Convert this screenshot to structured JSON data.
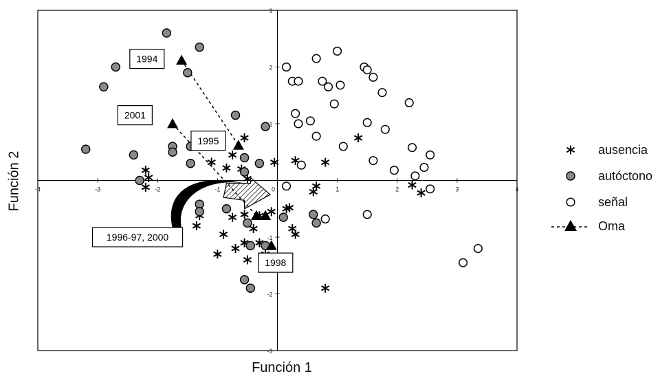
{
  "chart_data": {
    "type": "scatter",
    "xlabel": "Función 1",
    "ylabel": "Función 2",
    "xlim": [
      -4,
      4
    ],
    "ylim": [
      -3,
      3
    ],
    "x_ticks": [
      "-4",
      "-3",
      "-2",
      "-1",
      "0",
      "1",
      "2",
      "3",
      "4"
    ],
    "y_ticks": [
      "3",
      "2",
      "1",
      "-1",
      "-2",
      "-3"
    ],
    "grid": false,
    "legend_position": "right",
    "legend": [
      {
        "key": "ausencia",
        "label": "ausencia"
      },
      {
        "key": "autoctono",
        "label": "autóctono"
      },
      {
        "key": "senal",
        "label": "señal"
      },
      {
        "key": "oma",
        "label": "Oma"
      }
    ],
    "series": [
      {
        "name": "ausencia",
        "marker": "asterisk",
        "points": [
          [
            -2.2,
            0.18
          ],
          [
            -2.15,
            0.05
          ],
          [
            -2.2,
            -0.12
          ],
          [
            -1.1,
            0.32
          ],
          [
            -0.85,
            0.22
          ],
          [
            -0.6,
            0.2
          ],
          [
            -0.55,
            0.75
          ],
          [
            -0.75,
            0.45
          ],
          [
            -0.05,
            0.32
          ],
          [
            0.3,
            0.35
          ],
          [
            0.8,
            0.32
          ],
          [
            1.35,
            0.75
          ],
          [
            2.25,
            -0.08
          ],
          [
            2.4,
            -0.22
          ],
          [
            -0.5,
            0.03
          ],
          [
            -1.3,
            -0.62
          ],
          [
            -0.75,
            -0.65
          ],
          [
            -0.55,
            -0.6
          ],
          [
            -0.3,
            -0.62
          ],
          [
            -0.4,
            -0.85
          ],
          [
            -0.1,
            -0.55
          ],
          [
            0.2,
            -0.48
          ],
          [
            0.25,
            -0.85
          ],
          [
            0.3,
            -0.95
          ],
          [
            -0.9,
            -0.95
          ],
          [
            -0.55,
            -1.1
          ],
          [
            -0.3,
            -1.1
          ],
          [
            -0.7,
            -1.2
          ],
          [
            -0.5,
            -1.4
          ],
          [
            -1.0,
            -1.3
          ],
          [
            -0.2,
            -1.4
          ],
          [
            -0.2,
            -1.3
          ],
          [
            0.65,
            -0.1
          ],
          [
            0.6,
            -0.2
          ],
          [
            0.8,
            -1.9
          ],
          [
            -1.35,
            -0.8
          ],
          [
            0.15,
            -0.5
          ]
        ]
      },
      {
        "name": "autóctono",
        "marker": "filled-circle",
        "points": [
          [
            -3.2,
            0.55
          ],
          [
            -2.9,
            1.65
          ],
          [
            -2.7,
            2.0
          ],
          [
            -1.85,
            2.6
          ],
          [
            -1.3,
            2.35
          ],
          [
            -1.5,
            1.9
          ],
          [
            -2.4,
            0.45
          ],
          [
            -2.3,
            0.0
          ],
          [
            -1.75,
            0.6
          ],
          [
            -1.75,
            0.5
          ],
          [
            -1.45,
            0.6
          ],
          [
            -1.45,
            0.3
          ],
          [
            -0.7,
            1.15
          ],
          [
            -0.2,
            0.95
          ],
          [
            -0.55,
            0.4
          ],
          [
            -0.55,
            0.15
          ],
          [
            -0.3,
            0.3
          ],
          [
            -1.3,
            -0.42
          ],
          [
            -1.3,
            -0.55
          ],
          [
            -0.85,
            -0.5
          ],
          [
            -0.5,
            -0.75
          ],
          [
            -0.45,
            -1.15
          ],
          [
            0.6,
            -0.6
          ],
          [
            0.65,
            -0.75
          ],
          [
            -0.2,
            -1.15
          ],
          [
            -0.55,
            -1.75
          ],
          [
            -0.45,
            -1.9
          ],
          [
            0.1,
            -0.65
          ]
        ]
      },
      {
        "name": "señal",
        "marker": "open-circle",
        "points": [
          [
            0.15,
            2.0
          ],
          [
            0.25,
            1.75
          ],
          [
            0.35,
            1.75
          ],
          [
            0.65,
            2.15
          ],
          [
            0.75,
            1.75
          ],
          [
            0.85,
            1.65
          ],
          [
            1.0,
            2.28
          ],
          [
            1.05,
            1.68
          ],
          [
            0.95,
            1.35
          ],
          [
            1.45,
            2.0
          ],
          [
            1.5,
            1.95
          ],
          [
            1.6,
            1.82
          ],
          [
            1.75,
            1.55
          ],
          [
            2.2,
            1.37
          ],
          [
            0.3,
            1.18
          ],
          [
            0.35,
            1.0
          ],
          [
            0.55,
            1.05
          ],
          [
            0.65,
            0.78
          ],
          [
            1.1,
            0.6
          ],
          [
            1.5,
            1.02
          ],
          [
            1.8,
            0.9
          ],
          [
            1.6,
            0.35
          ],
          [
            1.95,
            0.18
          ],
          [
            2.25,
            0.58
          ],
          [
            2.3,
            0.08
          ],
          [
            2.45,
            0.23
          ],
          [
            2.55,
            0.45
          ],
          [
            2.55,
            -0.15
          ],
          [
            0.4,
            0.27
          ],
          [
            1.5,
            -0.6
          ],
          [
            0.8,
            -0.68
          ],
          [
            3.1,
            -1.45
          ],
          [
            3.35,
            -1.2
          ],
          [
            0.15,
            -0.1
          ]
        ]
      },
      {
        "name": "Oma",
        "marker": "triangle",
        "connector": "dashed",
        "points": [
          [
            -1.6,
            2.12
          ],
          [
            -0.65,
            0.62
          ],
          [
            -1.75,
            1.0
          ],
          [
            -0.35,
            -0.62
          ],
          [
            -0.2,
            -0.62
          ],
          [
            -0.1,
            -1.15
          ]
        ]
      }
    ],
    "annotations": [
      {
        "text": "1994",
        "at": [
          -1.6,
          2.12
        ]
      },
      {
        "text": "1995",
        "at": [
          -0.65,
          0.62
        ]
      },
      {
        "text": "2001",
        "at": [
          -1.75,
          1.0
        ]
      },
      {
        "text": "1996-97, 2000",
        "at": [
          -0.3,
          -0.62
        ]
      },
      {
        "text": "1998",
        "at": [
          -0.1,
          -1.15
        ]
      }
    ]
  }
}
